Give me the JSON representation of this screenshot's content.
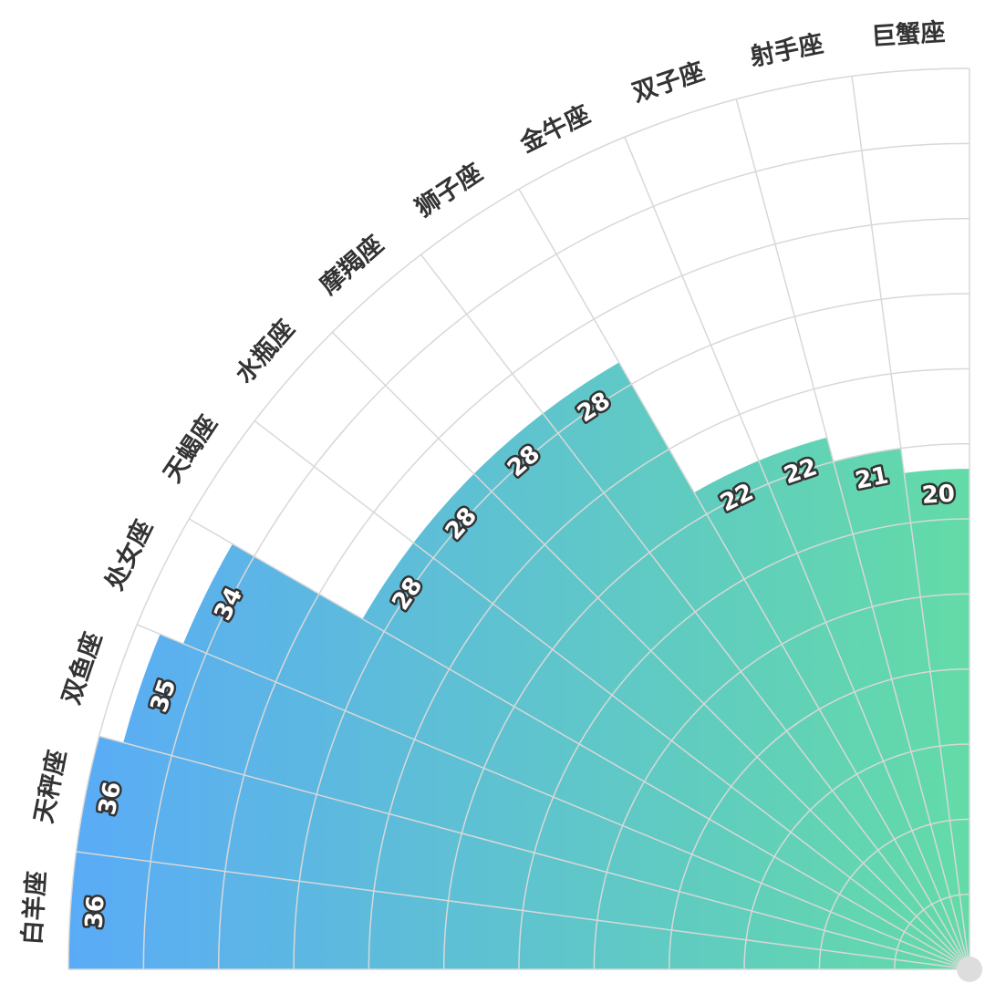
{
  "chart_data": {
    "type": "polar-bar",
    "categories": [
      "白羊座",
      "天秤座",
      "双鱼座",
      "处女座",
      "天蝎座",
      "水瓶座",
      "摩羯座",
      "狮子座",
      "金牛座",
      "双子座",
      "射手座",
      "巨蟹座"
    ],
    "values": [
      36,
      36,
      35,
      34,
      28,
      28,
      28,
      28,
      22,
      22,
      21,
      20
    ],
    "gradient": [
      "#5aabf7",
      "#63dba7"
    ],
    "ylim": [
      0,
      36
    ],
    "yticks": [
      0,
      3,
      6,
      9,
      12,
      15,
      18,
      21,
      24,
      27,
      30,
      33,
      36
    ],
    "grid": true
  }
}
